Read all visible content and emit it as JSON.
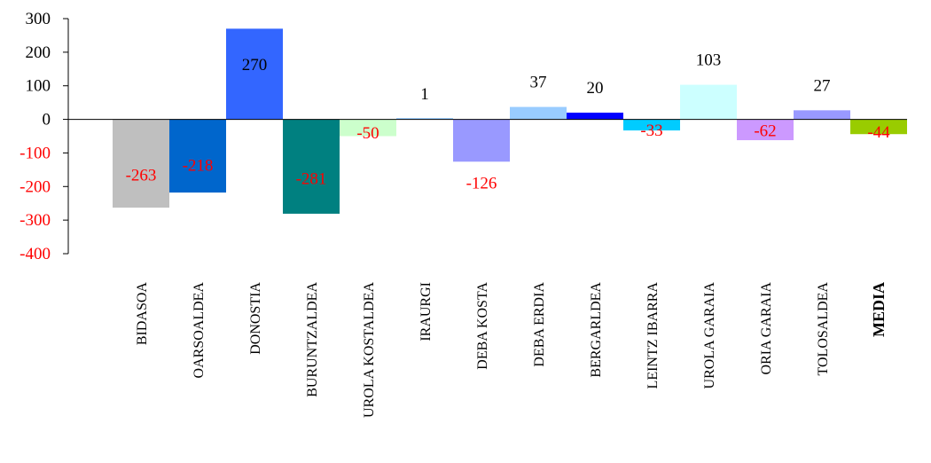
{
  "chart_data": {
    "type": "bar",
    "title": "",
    "xlabel": "",
    "ylabel": "",
    "ylim": [
      -400,
      300
    ],
    "yticks": [
      300,
      200,
      100,
      0,
      -100,
      -200,
      -300,
      -400
    ],
    "grid": false,
    "legend": "none",
    "categories": [
      "BIDASOA",
      "OARSOALDEA",
      "DONOSTIA",
      "BURUNTZALDEA",
      "UROLA KOSTALDEA",
      "IRAURGI",
      "DEBA KOSTA",
      "DEBA ERDIA",
      "BERGARLDEA",
      "LEINTZ IBARRA",
      "UROLA GARAIA",
      "ORIA GARAIA",
      "TOLOSALDEA",
      "MEDIA"
    ],
    "bold_categories": [
      "MEDIA"
    ],
    "values": [
      -263,
      -218,
      270,
      -281,
      -50,
      1,
      -126,
      37,
      20,
      -33,
      103,
      -62,
      27,
      -44
    ],
    "data_labels": [
      "-263",
      "-218",
      "270",
      "-281",
      "-50",
      "1",
      "-126",
      "37",
      "20",
      "-33",
      "103",
      "-62",
      "27",
      "-44"
    ],
    "bar_colors": [
      "#bfbfbf",
      "#0066cc",
      "#3366ff",
      "#008080",
      "#ccffcc",
      "#99ccff",
      "#9999ff",
      "#99ccff",
      "#0000ff",
      "#00ccff",
      "#ccffff",
      "#cc99ff",
      "#9999ff",
      "#99cc00"
    ],
    "negative_color": "#ff0000",
    "positive_color": "#000000"
  }
}
